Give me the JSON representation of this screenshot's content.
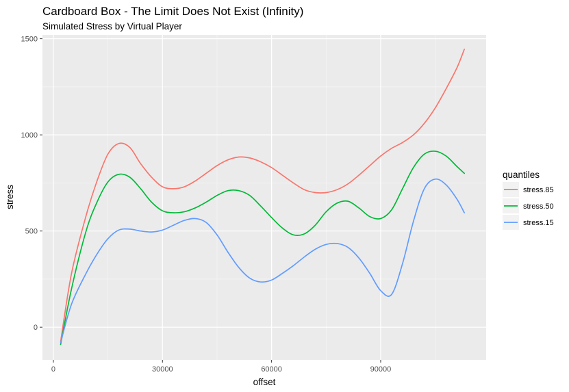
{
  "chart_data": {
    "type": "line",
    "title": "Cardboard Box - The Limit Does Not Exist (Infinity)",
    "subtitle": "Simulated Stress by Virtual Player",
    "xlabel": "offset",
    "ylabel": "stress",
    "xlim": [
      -3000,
      119000
    ],
    "ylim": [
      -170,
      1520
    ],
    "x_ticks": [
      0,
      30000,
      60000,
      90000
    ],
    "x_tick_labels": [
      "0",
      "30000",
      "60000",
      "90000"
    ],
    "y_ticks": [
      0,
      500,
      1000,
      1500
    ],
    "y_tick_labels": [
      "0",
      "500",
      "1000",
      "1500"
    ],
    "grid": true,
    "legend": {
      "title": "quantiles",
      "position": "right"
    },
    "x": [
      2000,
      5000,
      9000,
      12000,
      15000,
      18000,
      21000,
      24000,
      27000,
      30000,
      33000,
      36000,
      39000,
      42000,
      45000,
      48000,
      51000,
      54000,
      57000,
      60000,
      63000,
      66000,
      69000,
      72000,
      75000,
      78000,
      81000,
      84000,
      87000,
      90000,
      93000,
      96000,
      99000,
      102000,
      105000,
      108000,
      111000,
      113000
    ],
    "series": [
      {
        "name": "stress.85",
        "color": "#F8766D",
        "values": [
          -75,
          280,
          580,
          760,
          900,
          955,
          935,
          850,
          780,
          730,
          720,
          730,
          760,
          800,
          840,
          870,
          885,
          880,
          860,
          830,
          790,
          750,
          715,
          700,
          700,
          715,
          745,
          790,
          840,
          890,
          930,
          960,
          1000,
          1060,
          1140,
          1240,
          1350,
          1445
        ]
      },
      {
        "name": "stress.50",
        "color": "#00BA38",
        "values": [
          -90,
          200,
          500,
          650,
          755,
          795,
          780,
          720,
          650,
          605,
          595,
          600,
          620,
          650,
          685,
          710,
          710,
          685,
          630,
          570,
          515,
          480,
          485,
          530,
          600,
          645,
          655,
          620,
          575,
          565,
          610,
          720,
          830,
          900,
          915,
          890,
          835,
          800
        ]
      },
      {
        "name": "stress.15",
        "color": "#619CFF",
        "values": [
          -80,
          120,
          280,
          380,
          460,
          505,
          510,
          500,
          495,
          505,
          530,
          555,
          565,
          545,
          480,
          390,
          310,
          255,
          235,
          245,
          280,
          320,
          365,
          405,
          430,
          435,
          415,
          360,
          280,
          190,
          170,
          330,
          550,
          720,
          770,
          740,
          665,
          595
        ]
      }
    ]
  }
}
